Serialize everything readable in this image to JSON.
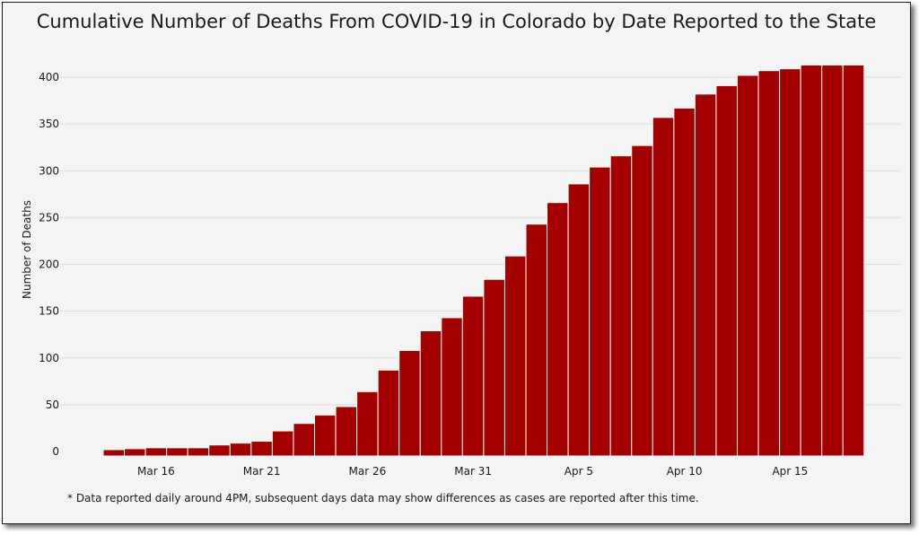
{
  "chart_data": {
    "type": "bar",
    "title": "Cumulative Number of Deaths From COVID-19 in Colorado by Date Reported to the State",
    "ylabel": "Number of Deaths",
    "xlabel": "",
    "ylim": [
      0,
      400
    ],
    "yticks": [
      0,
      50,
      100,
      150,
      200,
      250,
      300,
      350,
      400
    ],
    "grid": true,
    "legend": "none",
    "bar_color": "#a50000",
    "categories": [
      "Mar 14",
      "Mar 15",
      "Mar 16",
      "Mar 17",
      "Mar 18",
      "Mar 19",
      "Mar 20",
      "Mar 21",
      "Mar 22",
      "Mar 23",
      "Mar 24",
      "Mar 25",
      "Mar 26",
      "Mar 27",
      "Mar 28",
      "Mar 29",
      "Mar 30",
      "Mar 31",
      "Apr 1",
      "Apr 2",
      "Apr 3",
      "Apr 4",
      "Apr 5",
      "Apr 6",
      "Apr 7",
      "Apr 8",
      "Apr 9",
      "Apr 10",
      "Apr 11",
      "Apr 12",
      "Apr 13",
      "Apr 14",
      "Apr 15",
      "Apr 16",
      "Apr 17",
      "Apr 18"
    ],
    "x_tick_labels": [
      "Mar 16",
      "Mar 21",
      "Mar 26",
      "Mar 31",
      "Apr 5",
      "Apr 10",
      "Apr 15"
    ],
    "values": [
      2,
      3,
      4,
      4,
      4,
      7,
      9,
      11,
      22,
      30,
      39,
      48,
      64,
      87,
      108,
      129,
      143,
      166,
      184,
      209,
      243,
      266,
      286,
      304,
      316,
      327,
      357,
      367,
      382,
      391,
      402,
      407,
      409,
      413,
      413,
      413
    ]
  },
  "footnote": "* Data reported daily around 4PM, subsequent days data may show differences as cases are reported after this time."
}
